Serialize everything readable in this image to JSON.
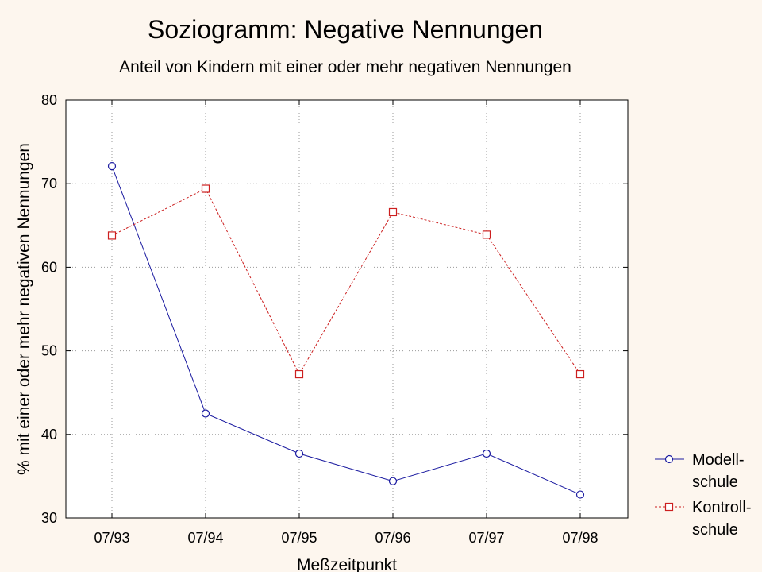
{
  "chart_data": {
    "type": "line",
    "title": "Soziogramm: Negative Nennungen",
    "subtitle": "Anteil von Kindern mit einer oder mehr negativen Nennungen",
    "xlabel": "Meßzeitpunkt",
    "ylabel": "% mit einer oder mehr negativen Nennungen",
    "categories": [
      "07/93",
      "07/94",
      "07/95",
      "07/96",
      "07/97",
      "07/98"
    ],
    "ylim": [
      30,
      80
    ],
    "yticks": [
      30,
      40,
      50,
      60,
      70,
      80
    ],
    "grid": true,
    "legend_position": "right",
    "series": [
      {
        "legend_lines": [
          "Modell-",
          "schule"
        ],
        "values": [
          72.1,
          42.5,
          37.7,
          34.4,
          37.7,
          32.8
        ],
        "color": "#1a1aa0",
        "marker": "circle",
        "line_style": "solid"
      },
      {
        "legend_lines": [
          "Kontroll-",
          "schule"
        ],
        "values": [
          63.8,
          69.4,
          47.2,
          66.6,
          63.9,
          47.2
        ],
        "color": "#cc1f1f",
        "marker": "square",
        "line_style": "dashed"
      }
    ]
  }
}
